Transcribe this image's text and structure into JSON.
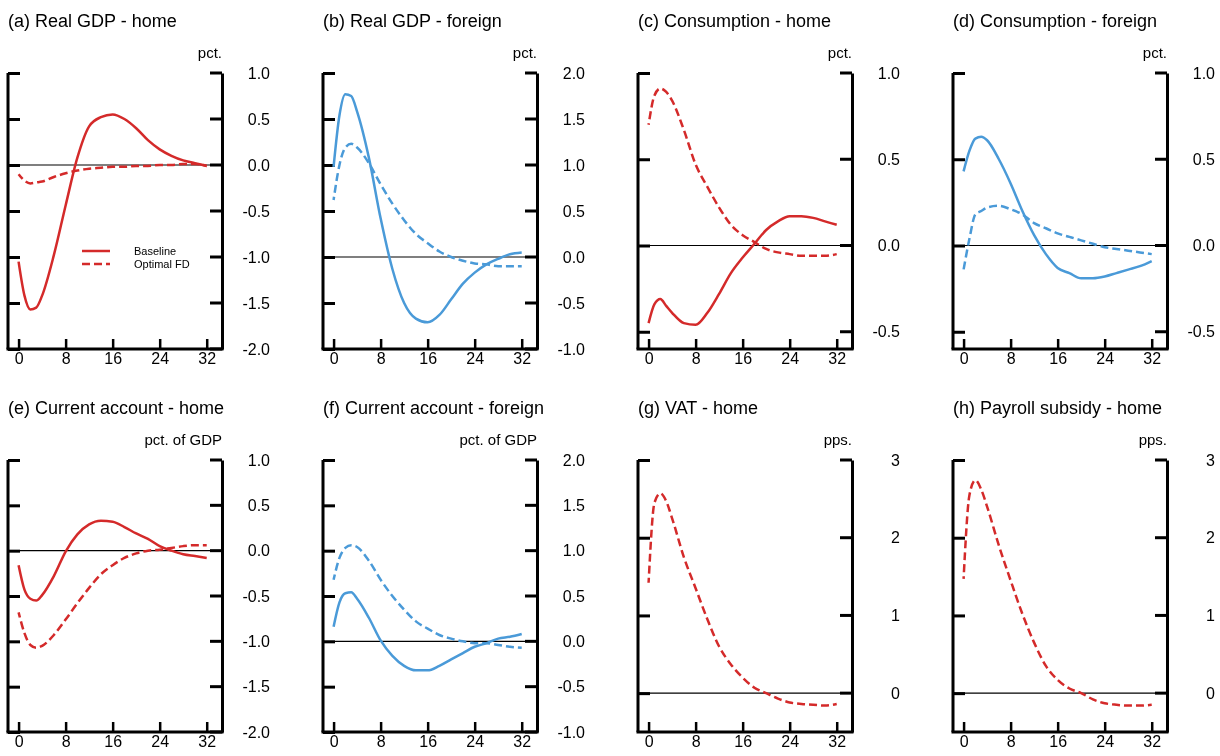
{
  "chart_data": [
    {
      "type": "line",
      "title": "(a) Real GDP - home",
      "ylabel": "pct.",
      "x": [
        0,
        1,
        2,
        3,
        4,
        6,
        8,
        10,
        12,
        14,
        16,
        18,
        20,
        22,
        24,
        26,
        28,
        30,
        32
      ],
      "xlim": [
        -1.8,
        34.6
      ],
      "xticks": [
        0,
        8,
        16,
        24,
        32
      ],
      "ylim": [
        -2,
        1
      ],
      "yticks": [
        {
          "value": -2,
          "label": "-2.0"
        },
        {
          "value": -1.5,
          "label": "-1.5"
        },
        {
          "value": -1,
          "label": "-1.0"
        },
        {
          "value": -0.5,
          "label": "-0.5"
        },
        {
          "value": 0,
          "label": "0.0"
        },
        {
          "value": 0.5,
          "label": "0.5"
        },
        {
          "value": 1,
          "label": "1.0"
        }
      ],
      "legend": "bottom right",
      "ref_lines": [
        {
          "axis": "y",
          "value": 0,
          "color": "#000000"
        }
      ],
      "series": [
        {
          "name": "Baseline",
          "color": "#d42a2a",
          "line_style": "solid",
          "values": [
            -1.05,
            -1.42,
            -1.57,
            -1.55,
            -1.42,
            -0.98,
            -0.44,
            0.08,
            0.42,
            0.52,
            0.55,
            0.5,
            0.4,
            0.27,
            0.17,
            0.1,
            0.05,
            0.02,
            -0.01
          ]
        },
        {
          "name": "Optimal FD",
          "color": "#d42a2a",
          "line_style": "dashed",
          "values": [
            -0.1,
            -0.17,
            -0.2,
            -0.19,
            -0.18,
            -0.13,
            -0.09,
            -0.06,
            -0.04,
            -0.03,
            -0.02,
            -0.02,
            -0.01,
            -0.01,
            0,
            0,
            0.01,
            0.01,
            -0.01
          ]
        }
      ]
    },
    {
      "type": "line",
      "title": "(b) Real GDP - foreign",
      "ylabel": "pct.",
      "x": [
        0,
        1,
        2,
        3,
        4,
        6,
        8,
        10,
        12,
        14,
        16,
        18,
        20,
        22,
        24,
        26,
        28,
        30,
        32
      ],
      "xlim": [
        -1.8,
        34.6
      ],
      "xticks": [
        0,
        8,
        16,
        24,
        32
      ],
      "ylim": [
        -1,
        2
      ],
      "yticks": [
        {
          "value": -1,
          "label": "-1.0"
        },
        {
          "value": -0.5,
          "label": "-0.5"
        },
        {
          "value": 0,
          "label": "0.0"
        },
        {
          "value": 0.5,
          "label": "0.5"
        },
        {
          "value": 1,
          "label": "1.0"
        },
        {
          "value": 1.5,
          "label": "1.5"
        },
        {
          "value": 2,
          "label": "2.0"
        }
      ],
      "ref_lines": [
        {
          "axis": "y",
          "value": 0,
          "color": "#000000"
        }
      ],
      "series": [
        {
          "color": "#4a9ad8",
          "line_style": "solid",
          "values": [
            0.98,
            1.54,
            1.77,
            1.75,
            1.58,
            1.08,
            0.42,
            -0.13,
            -0.5,
            -0.67,
            -0.71,
            -0.63,
            -0.46,
            -0.29,
            -0.17,
            -0.08,
            -0.02,
            0.03,
            0.05
          ]
        },
        {
          "color": "#4a9ad8",
          "line_style": "dashed",
          "values": [
            0.62,
            1.0,
            1.19,
            1.23,
            1.19,
            1.02,
            0.79,
            0.58,
            0.4,
            0.25,
            0.15,
            0.06,
            0,
            -0.04,
            -0.07,
            -0.08,
            -0.1,
            -0.1,
            -0.1
          ]
        }
      ]
    },
    {
      "type": "line",
      "title": "(c) Consumption - home",
      "ylabel": "pct.",
      "x": [
        0,
        1,
        2,
        3,
        4,
        6,
        8,
        10,
        12,
        14,
        16,
        18,
        20,
        22,
        24,
        26,
        28,
        30,
        32
      ],
      "xlim": [
        -1.8,
        34.6
      ],
      "xticks": [
        0,
        8,
        16,
        24,
        32
      ],
      "ylim": [
        -0.6,
        1
      ],
      "yticks": [
        -0.5,
        {
          "value": 0,
          "label": "0.0"
        },
        0.5,
        {
          "value": 1,
          "label": "1.0"
        }
      ],
      "ref_lines": [
        {
          "axis": "y",
          "value": 0,
          "color": "#000000"
        }
      ],
      "series": [
        {
          "color": "#d42a2a",
          "line_style": "solid",
          "values": [
            -0.45,
            -0.34,
            -0.31,
            -0.35,
            -0.39,
            -0.45,
            -0.46,
            -0.39,
            -0.28,
            -0.16,
            -0.07,
            0.01,
            0.09,
            0.14,
            0.17,
            0.17,
            0.16,
            0.14,
            0.12
          ]
        },
        {
          "color": "#d42a2a",
          "line_style": "dashed",
          "values": [
            0.7,
            0.87,
            0.91,
            0.89,
            0.84,
            0.67,
            0.47,
            0.34,
            0.22,
            0.12,
            0.06,
            0.02,
            -0.02,
            -0.04,
            -0.05,
            -0.06,
            -0.06,
            -0.06,
            -0.05
          ]
        }
      ]
    },
    {
      "type": "line",
      "title": "(d) Consumption - foreign",
      "ylabel": "pct.",
      "x": [
        0,
        1,
        2,
        3,
        4,
        6,
        8,
        10,
        12,
        14,
        16,
        18,
        20,
        22,
        24,
        26,
        28,
        30,
        32
      ],
      "xlim": [
        -1.8,
        34.6
      ],
      "xticks": [
        0,
        8,
        16,
        24,
        32
      ],
      "ylim": [
        -0.6,
        1
      ],
      "yticks": [
        -0.5,
        {
          "value": 0,
          "label": "0.0"
        },
        0.5,
        {
          "value": 1,
          "label": "1.0"
        }
      ],
      "ref_lines": [
        {
          "axis": "y",
          "value": 0,
          "color": "#000000"
        }
      ],
      "series": [
        {
          "color": "#4a9ad8",
          "line_style": "solid",
          "values": [
            0.43,
            0.55,
            0.62,
            0.63,
            0.61,
            0.5,
            0.36,
            0.2,
            0.06,
            -0.05,
            -0.13,
            -0.16,
            -0.19,
            -0.19,
            -0.18,
            -0.16,
            -0.14,
            -0.12,
            -0.09
          ]
        },
        {
          "color": "#4a9ad8",
          "line_style": "dashed",
          "values": [
            -0.14,
            0.04,
            0.18,
            0.2,
            0.22,
            0.23,
            0.21,
            0.18,
            0.13,
            0.1,
            0.07,
            0.05,
            0.03,
            0.01,
            -0.01,
            -0.02,
            -0.03,
            -0.04,
            -0.05
          ]
        }
      ]
    },
    {
      "type": "line",
      "title": "(e) Current account - home",
      "ylabel": "pct. of GDP",
      "x": [
        0,
        1,
        2,
        3,
        4,
        6,
        8,
        10,
        12,
        14,
        16,
        18,
        20,
        22,
        24,
        26,
        28,
        30,
        32
      ],
      "xlim": [
        -1.8,
        34.6
      ],
      "xticks": [
        0,
        8,
        16,
        24,
        32
      ],
      "ylim": [
        -2,
        1
      ],
      "yticks": [
        {
          "value": -2,
          "label": "-2.0"
        },
        {
          "value": -1.5,
          "label": "-1.5"
        },
        {
          "value": -1,
          "label": "-1.0"
        },
        {
          "value": -0.5,
          "label": "-0.5"
        },
        {
          "value": 0,
          "label": "0.0"
        },
        {
          "value": 0.5,
          "label": "0.5"
        },
        {
          "value": 1,
          "label": "1.0"
        }
      ],
      "ref_lines": [
        {
          "axis": "y",
          "value": 0,
          "color": "#000000"
        }
      ],
      "series": [
        {
          "color": "#d42a2a",
          "line_style": "solid",
          "values": [
            -0.16,
            -0.43,
            -0.53,
            -0.55,
            -0.49,
            -0.28,
            -0.01,
            0.18,
            0.29,
            0.33,
            0.32,
            0.26,
            0.19,
            0.13,
            0.05,
            0,
            -0.04,
            -0.06,
            -0.08
          ]
        },
        {
          "color": "#d42a2a",
          "line_style": "dashed",
          "values": [
            -0.68,
            -0.91,
            -1.04,
            -1.07,
            -1.05,
            -0.93,
            -0.76,
            -0.58,
            -0.41,
            -0.26,
            -0.16,
            -0.08,
            -0.03,
            0,
            0.01,
            0.03,
            0.05,
            0.06,
            0.06
          ]
        }
      ]
    },
    {
      "type": "line",
      "title": "(f) Current account - foreign",
      "ylabel": "pct. of GDP",
      "x": [
        0,
        1,
        2,
        3,
        4,
        6,
        8,
        10,
        12,
        14,
        16,
        18,
        20,
        22,
        24,
        26,
        28,
        30,
        32
      ],
      "xlim": [
        -1.8,
        34.6
      ],
      "xticks": [
        0,
        8,
        16,
        24,
        32
      ],
      "ylim": [
        -1,
        2
      ],
      "yticks": [
        {
          "value": -1,
          "label": "-1.0"
        },
        {
          "value": -0.5,
          "label": "-0.5"
        },
        {
          "value": 0,
          "label": "0.0"
        },
        {
          "value": 0.5,
          "label": "0.5"
        },
        {
          "value": 1,
          "label": "1.0"
        },
        {
          "value": 1.5,
          "label": "1.5"
        },
        {
          "value": 2,
          "label": "2.0"
        }
      ],
      "ref_lines": [
        {
          "axis": "y",
          "value": 0,
          "color": "#000000"
        }
      ],
      "series": [
        {
          "color": "#4a9ad8",
          "line_style": "solid",
          "values": [
            0.16,
            0.43,
            0.53,
            0.54,
            0.47,
            0.26,
            0.01,
            -0.16,
            -0.27,
            -0.32,
            -0.32,
            -0.27,
            -0.2,
            -0.13,
            -0.06,
            -0.02,
            0.03,
            0.05,
            0.08
          ]
        },
        {
          "color": "#4a9ad8",
          "line_style": "dashed",
          "values": [
            0.68,
            0.92,
            1.03,
            1.06,
            1.04,
            0.89,
            0.68,
            0.5,
            0.35,
            0.22,
            0.14,
            0.07,
            0.03,
            0,
            -0.02,
            -0.02,
            -0.04,
            -0.06,
            -0.07
          ]
        }
      ]
    },
    {
      "type": "line",
      "title": "(g) VAT - home",
      "ylabel": "pps.",
      "x": [
        0,
        1,
        2,
        3,
        4,
        6,
        8,
        10,
        12,
        14,
        16,
        18,
        20,
        22,
        24,
        26,
        28,
        30,
        32
      ],
      "xlim": [
        -1.8,
        34.6
      ],
      "xticks": [
        0,
        8,
        16,
        24,
        32
      ],
      "ylim": [
        -0.5,
        3
      ],
      "yticks": [
        0,
        1,
        2,
        3
      ],
      "ref_lines": [
        {
          "axis": "y",
          "value": 0,
          "color": "#000000"
        }
      ],
      "series": [
        {
          "color": "#d42a2a",
          "line_style": "dashed",
          "values": [
            1.42,
            2.45,
            2.57,
            2.47,
            2.25,
            1.75,
            1.35,
            0.95,
            0.6,
            0.37,
            0.2,
            0.07,
            0,
            -0.07,
            -0.12,
            -0.14,
            -0.15,
            -0.16,
            -0.14
          ]
        }
      ]
    },
    {
      "type": "line",
      "title": "(h) Payroll subsidy - home",
      "ylabel": "pps.",
      "x": [
        0,
        1,
        2,
        3,
        4,
        6,
        8,
        10,
        12,
        14,
        16,
        18,
        20,
        22,
        24,
        26,
        28,
        30,
        32
      ],
      "xlim": [
        -1.8,
        34.6
      ],
      "xticks": [
        0,
        8,
        16,
        24,
        32
      ],
      "ylim": [
        -0.5,
        3
      ],
      "yticks": [
        0,
        1,
        2,
        3
      ],
      "ref_lines": [
        {
          "axis": "y",
          "value": 0,
          "color": "#000000"
        }
      ],
      "series": [
        {
          "color": "#d42a2a",
          "line_style": "dashed",
          "values": [
            1.47,
            2.55,
            2.74,
            2.62,
            2.4,
            1.9,
            1.45,
            1.02,
            0.65,
            0.35,
            0.17,
            0.06,
            0,
            -0.08,
            -0.13,
            -0.15,
            -0.16,
            -0.16,
            -0.15
          ]
        }
      ]
    }
  ]
}
